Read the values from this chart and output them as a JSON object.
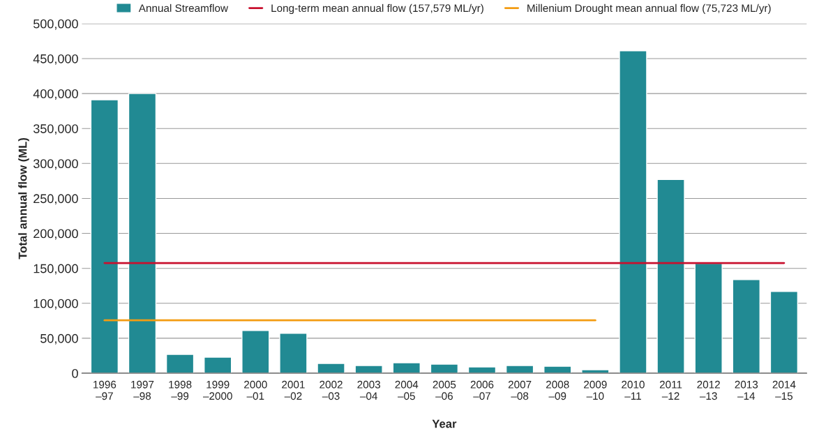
{
  "chart_data": {
    "type": "bar",
    "xlabel": "Year",
    "ylabel": "Total annual flow (ML)",
    "categories": [
      "1996\n–97",
      "1997\n–98",
      "1998\n–99",
      "1999\n–2000",
      "2000\n–01",
      "2001\n–02",
      "2002\n–03",
      "2003\n–04",
      "2004\n–05",
      "2005\n–06",
      "2006\n–07",
      "2007\n–08",
      "2008\n–09",
      "2009\n–10",
      "2010\n–11",
      "2011\n–12",
      "2012\n–13",
      "2013\n–14",
      "2014\n–15"
    ],
    "series": [
      {
        "name": "Annual Streamflow",
        "color": "#218a93",
        "values": [
          391000,
          400000,
          27000,
          23000,
          61000,
          57000,
          14000,
          11000,
          15000,
          13000,
          9000,
          11000,
          10000,
          5000,
          461000,
          277000,
          157000,
          134000,
          117000
        ]
      },
      {
        "name": "Long-term mean annual flow (157,579 ML/yr)",
        "type": "line",
        "color": "#c8102e",
        "values": [
          157579,
          157579,
          157579,
          157579,
          157579,
          157579,
          157579,
          157579,
          157579,
          157579,
          157579,
          157579,
          157579,
          157579,
          157579,
          157579,
          157579,
          157579,
          157579
        ]
      },
      {
        "name": "Millenium Drought mean annual flow (75,723 ML/yr)",
        "type": "line",
        "color": "#f39c12",
        "values": [
          75723,
          75723,
          75723,
          75723,
          75723,
          75723,
          75723,
          75723,
          75723,
          75723,
          75723,
          75723,
          75723,
          75723,
          null,
          null,
          null,
          null,
          null
        ]
      }
    ],
    "ylim": [
      0,
      500000
    ],
    "yticks": [
      0,
      {
        "value": 50000,
        "label": "50,000"
      },
      {
        "value": 100000,
        "label": "100,000"
      },
      {
        "value": 150000,
        "label": "150,000"
      },
      {
        "value": 200000,
        "label": "200,000"
      },
      {
        "value": 250000,
        "label": "250,000"
      },
      {
        "value": 300000,
        "label": "300,000"
      },
      {
        "value": 350000,
        "label": "350,000"
      },
      {
        "value": 400000,
        "label": "400,000"
      },
      {
        "value": 450000,
        "label": "450,000"
      },
      {
        "value": 500000,
        "label": "500,000"
      }
    ],
    "grid": "y",
    "legend": "top"
  }
}
